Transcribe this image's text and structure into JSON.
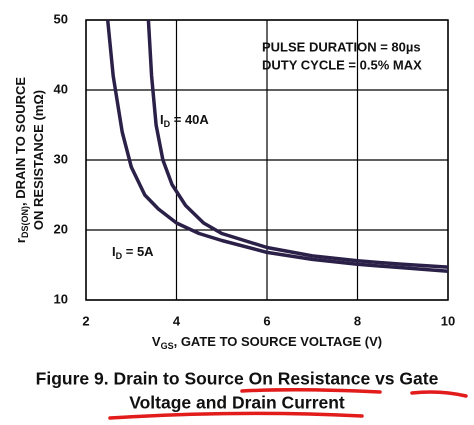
{
  "chart_data": {
    "type": "line",
    "annotations": [
      "PULSE DURATION = 80µs",
      "DUTY CYCLE = 0.5% MAX"
    ],
    "y_label_lines": [
      [
        "r",
        "DS(ON)",
        ", DRAIN TO SOURCE"
      ],
      [
        "ON RESISTANCE (mΩ)"
      ]
    ],
    "x_label": [
      "V",
      "GS",
      ", GATE TO SOURCE VOLTAGE (V)"
    ],
    "caption": [
      "Figure 9.  Drain to Source On Resistance vs Gate",
      "Voltage and Drain Current"
    ],
    "xlim": [
      2,
      10
    ],
    "xticks": [
      2,
      4,
      6,
      8,
      10
    ],
    "ylim": [
      10,
      50
    ],
    "yticks": [
      10,
      20,
      30,
      40,
      50
    ],
    "grid": true,
    "series": [
      {
        "label": [
          "I",
          "D",
          " = 40A"
        ],
        "color": "#2b2148",
        "x": [
          3.38,
          3.45,
          3.55,
          3.7,
          3.9,
          4.2,
          4.6,
          5,
          6,
          7,
          8,
          9,
          10
        ],
        "values": [
          50,
          42,
          35,
          30,
          26.5,
          23.5,
          21,
          19.5,
          17.5,
          16.3,
          15.6,
          15.1,
          14.7
        ]
      },
      {
        "label": [
          "I",
          "D",
          " = 5A"
        ],
        "color": "#2b2148",
        "x": [
          2.48,
          2.6,
          2.8,
          3.0,
          3.3,
          3.6,
          4.0,
          4.5,
          5,
          6,
          7,
          8,
          9,
          10
        ],
        "values": [
          50,
          42,
          34,
          29,
          25,
          23,
          21,
          19.5,
          18.5,
          16.8,
          15.8,
          15.1,
          14.6,
          14.1
        ]
      }
    ]
  }
}
